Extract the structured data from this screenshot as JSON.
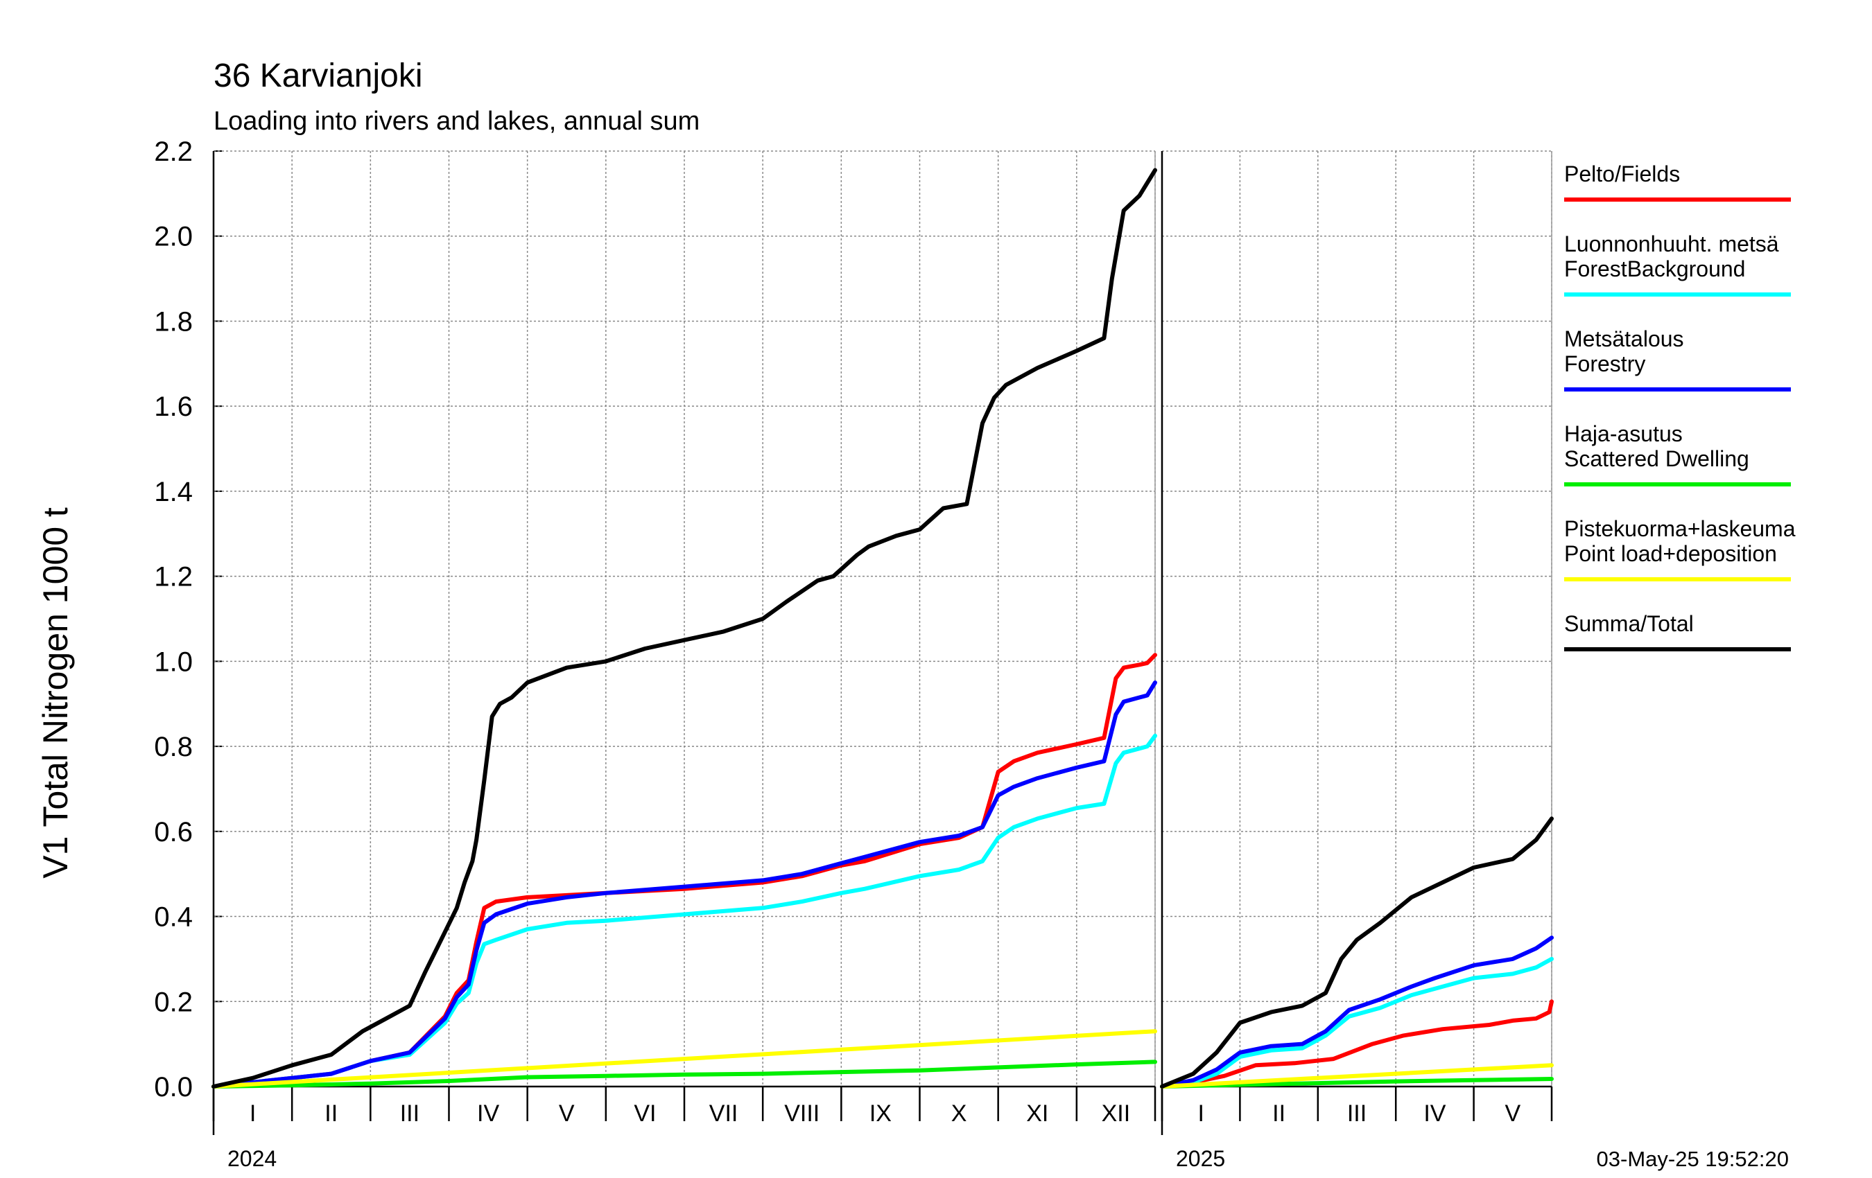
{
  "chart_data": {
    "type": "line",
    "title": "36 Karvianjoki",
    "subtitle": "Loading into rivers and lakes, annual sum",
    "ylabel": "V1 Total Nitrogen 1000 t",
    "ylim": [
      0,
      2.2
    ],
    "yticks": [
      "0.0",
      "0.2",
      "0.4",
      "0.6",
      "0.8",
      "1.0",
      "1.2",
      "1.4",
      "1.6",
      "1.8",
      "2.0",
      "2.2"
    ],
    "grid": true,
    "legend_position": "right",
    "timestamp": "03-May-25 19:52:20",
    "panels": [
      {
        "year": "2024",
        "x_unit": "month",
        "xlim": [
          0,
          12
        ],
        "month_labels": [
          "I",
          "II",
          "III",
          "IV",
          "V",
          "VI",
          "VII",
          "VIII",
          "IX",
          "X",
          "XI",
          "XII"
        ],
        "series": [
          {
            "name": "Pelto/Fields",
            "color": "#ff0000",
            "x": [
              0,
              1,
              1.5,
              2,
              2.5,
              2.95,
              3.1,
              3.25,
              3.35,
              3.45,
              3.6,
              4,
              4.5,
              5,
              6,
              7,
              7.5,
              8,
              8.3,
              9,
              9.5,
              9.8,
              10,
              10.2,
              10.5,
              11,
              11.35,
              11.5,
              11.6,
              11.8,
              11.9,
              12
            ],
            "y": [
              0,
              0.02,
              0.03,
              0.06,
              0.08,
              0.165,
              0.22,
              0.25,
              0.34,
              0.42,
              0.435,
              0.445,
              0.45,
              0.455,
              0.465,
              0.48,
              0.495,
              0.52,
              0.53,
              0.57,
              0.585,
              0.61,
              0.74,
              0.765,
              0.785,
              0.805,
              0.82,
              0.96,
              0.985,
              0.992,
              0.996,
              1.015
            ]
          },
          {
            "name": "Luonnonhuuht. metsä ForestBackground",
            "color": "#00ffff",
            "x": [
              0,
              1,
              1.5,
              2,
              2.5,
              2.95,
              3.1,
              3.25,
              3.35,
              3.45,
              3.6,
              4,
              4.5,
              5,
              6,
              7,
              7.5,
              8,
              8.3,
              9,
              9.5,
              9.8,
              10,
              10.2,
              10.5,
              11,
              11.35,
              11.5,
              11.6,
              11.8,
              11.9,
              12
            ],
            "y": [
              0,
              0.02,
              0.03,
              0.06,
              0.075,
              0.15,
              0.195,
              0.22,
              0.29,
              0.335,
              0.345,
              0.37,
              0.385,
              0.39,
              0.405,
              0.42,
              0.435,
              0.455,
              0.465,
              0.495,
              0.51,
              0.53,
              0.585,
              0.61,
              0.63,
              0.655,
              0.665,
              0.76,
              0.785,
              0.795,
              0.8,
              0.825
            ]
          },
          {
            "name": "Metsätalous Forestry",
            "color": "#0000ff",
            "x": [
              0,
              1,
              1.5,
              2,
              2.5,
              2.95,
              3.1,
              3.25,
              3.35,
              3.45,
              3.6,
              4,
              4.5,
              5,
              6,
              7,
              7.5,
              8,
              8.3,
              9,
              9.5,
              9.8,
              10,
              10.2,
              10.5,
              11,
              11.35,
              11.5,
              11.6,
              11.8,
              11.9,
              12
            ],
            "y": [
              0,
              0.02,
              0.03,
              0.06,
              0.08,
              0.16,
              0.21,
              0.24,
              0.32,
              0.385,
              0.405,
              0.43,
              0.445,
              0.455,
              0.47,
              0.485,
              0.5,
              0.525,
              0.54,
              0.575,
              0.59,
              0.61,
              0.685,
              0.705,
              0.725,
              0.75,
              0.765,
              0.875,
              0.905,
              0.915,
              0.92,
              0.95
            ]
          },
          {
            "name": "Haja-asutus Scattered Dwelling",
            "color": "#00ee00",
            "x": [
              0,
              1,
              2,
              3,
              4,
              5,
              6,
              7,
              8,
              9,
              10,
              11,
              12
            ],
            "y": [
              0,
              0.003,
              0.007,
              0.013,
              0.022,
              0.025,
              0.028,
              0.03,
              0.034,
              0.038,
              0.045,
              0.052,
              0.058
            ]
          },
          {
            "name": "Pistekuorma+laskeuma Point load+deposition",
            "color": "#ffff00",
            "x": [
              0,
              12
            ],
            "y": [
              0,
              0.13
            ]
          },
          {
            "name": "Summa/Total",
            "color": "#000000",
            "x": [
              0,
              0.5,
              1,
              1.5,
              1.9,
              2.2,
              2.5,
              2.7,
              2.9,
              3.1,
              3.2,
              3.3,
              3.35,
              3.45,
              3.55,
              3.65,
              3.8,
              4,
              4.5,
              5,
              5.5,
              6,
              6.5,
              7,
              7.3,
              7.7,
              7.9,
              8.2,
              8.35,
              8.7,
              9,
              9.3,
              9.6,
              9.8,
              9.95,
              10.1,
              10.5,
              11,
              11.35,
              11.45,
              11.6,
              11.8,
              12
            ],
            "y": [
              0,
              0.02,
              0.05,
              0.075,
              0.13,
              0.16,
              0.19,
              0.27,
              0.345,
              0.42,
              0.48,
              0.53,
              0.58,
              0.72,
              0.87,
              0.9,
              0.915,
              0.95,
              0.985,
              1.0,
              1.03,
              1.05,
              1.07,
              1.1,
              1.14,
              1.19,
              1.2,
              1.25,
              1.27,
              1.295,
              1.31,
              1.36,
              1.37,
              1.56,
              1.62,
              1.65,
              1.69,
              1.73,
              1.76,
              1.9,
              2.06,
              2.095,
              2.155
            ]
          }
        ]
      },
      {
        "year": "2025",
        "x_unit": "month",
        "xlim": [
          0,
          5
        ],
        "month_labels": [
          "I",
          "II",
          "III",
          "IV",
          "V"
        ],
        "series": [
          {
            "name": "Pelto/Fields",
            "color": "#ff0000",
            "x": [
              0,
              0.4,
              0.8,
              1.2,
              1.7,
              2.2,
              2.7,
              3.1,
              3.6,
              4.2,
              4.5,
              4.8,
              4.97,
              5
            ],
            "y": [
              0,
              0.01,
              0.025,
              0.05,
              0.055,
              0.065,
              0.1,
              0.12,
              0.135,
              0.145,
              0.155,
              0.16,
              0.175,
              0.2
            ]
          },
          {
            "name": "Luonnonhuuht. metsä ForestBackground",
            "color": "#00ffff",
            "x": [
              0,
              0.4,
              0.7,
              1,
              1.4,
              1.8,
              2.1,
              2.4,
              2.8,
              3.2,
              3.5,
              4,
              4.5,
              4.8,
              5
            ],
            "y": [
              0,
              0.01,
              0.03,
              0.07,
              0.085,
              0.09,
              0.12,
              0.165,
              0.185,
              0.215,
              0.23,
              0.255,
              0.265,
              0.28,
              0.3
            ]
          },
          {
            "name": "Metsätalous Forestry",
            "color": "#0000ff",
            "x": [
              0,
              0.4,
              0.7,
              1,
              1.4,
              1.8,
              2.1,
              2.4,
              2.8,
              3.2,
              3.5,
              4,
              4.5,
              4.8,
              5
            ],
            "y": [
              0,
              0.015,
              0.04,
              0.08,
              0.095,
              0.1,
              0.13,
              0.18,
              0.205,
              0.235,
              0.255,
              0.285,
              0.3,
              0.325,
              0.35
            ]
          },
          {
            "name": "Haja-asutus Scattered Dwelling",
            "color": "#00ee00",
            "x": [
              0,
              1,
              2,
              3,
              4,
              5
            ],
            "y": [
              0,
              0.004,
              0.008,
              0.012,
              0.015,
              0.018
            ]
          },
          {
            "name": "Pistekuorma+laskeuma Point load+deposition",
            "color": "#ffff00",
            "x": [
              0,
              5
            ],
            "y": [
              0,
              0.05
            ]
          },
          {
            "name": "Summa/Total",
            "color": "#000000",
            "x": [
              0,
              0.4,
              0.7,
              1,
              1.4,
              1.8,
              2.1,
              2.3,
              2.5,
              2.8,
              3.2,
              3.6,
              4,
              4.5,
              4.8,
              5
            ],
            "y": [
              0,
              0.03,
              0.08,
              0.15,
              0.175,
              0.19,
              0.22,
              0.3,
              0.345,
              0.385,
              0.445,
              0.48,
              0.515,
              0.535,
              0.58,
              0.63
            ]
          }
        ]
      }
    ],
    "legend": [
      {
        "lines": [
          "Pelto/Fields"
        ],
        "color": "#ff0000"
      },
      {
        "lines": [
          "Luonnonhuuht. metsä",
          "ForestBackground"
        ],
        "color": "#00ffff"
      },
      {
        "lines": [
          "Metsätalous",
          "Forestry"
        ],
        "color": "#0000ff"
      },
      {
        "lines": [
          "Haja-asutus",
          "Scattered Dwelling"
        ],
        "color": "#00ee00"
      },
      {
        "lines": [
          "Pistekuorma+laskeuma",
          "Point load+deposition"
        ],
        "color": "#ffff00"
      },
      {
        "lines": [
          "Summa/Total"
        ],
        "color": "#000000"
      }
    ]
  }
}
